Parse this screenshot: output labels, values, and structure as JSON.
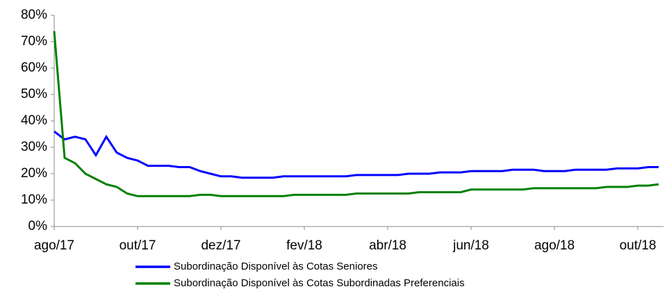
{
  "chart_data": {
    "type": "line",
    "categories": [
      "ago/17",
      null,
      null,
      null,
      null,
      null,
      null,
      null,
      "out/17",
      null,
      null,
      null,
      null,
      null,
      null,
      null,
      "dez/17",
      null,
      null,
      null,
      null,
      null,
      null,
      null,
      "fev/18",
      null,
      null,
      null,
      null,
      null,
      null,
      null,
      "abr/18",
      null,
      null,
      null,
      null,
      null,
      null,
      null,
      "jun/18",
      null,
      null,
      null,
      null,
      null,
      null,
      null,
      "ago/18",
      null,
      null,
      null,
      null,
      null,
      null,
      null,
      "out/18",
      null,
      null
    ],
    "series": [
      {
        "name": "Subordinação Disponível às Cotas Seniores",
        "color": "#0000ff",
        "values": [
          36,
          33,
          34,
          33,
          27,
          34,
          28,
          26,
          25,
          23,
          23,
          23,
          22.5,
          22.5,
          21,
          20,
          19,
          19,
          18.5,
          18.5,
          18.5,
          18.5,
          19,
          19,
          19,
          19,
          19,
          19,
          19,
          19.5,
          19.5,
          19.5,
          19.5,
          19.5,
          20,
          20,
          20,
          20.5,
          20.5,
          20.5,
          21,
          21,
          21,
          21,
          21.5,
          21.5,
          21.5,
          21,
          21,
          21,
          21.5,
          21.5,
          21.5,
          21.5,
          22,
          22,
          22,
          22.5,
          22.5
        ]
      },
      {
        "name": "Subordinação Disponível às Cotas Subordinadas Preferenciais",
        "color": "#008000",
        "values": [
          74,
          26,
          24,
          20,
          18,
          16,
          15,
          12.5,
          11.5,
          11.5,
          11.5,
          11.5,
          11.5,
          11.5,
          12,
          12,
          11.5,
          11.5,
          11.5,
          11.5,
          11.5,
          11.5,
          11.5,
          12,
          12,
          12,
          12,
          12,
          12,
          12.5,
          12.5,
          12.5,
          12.5,
          12.5,
          12.5,
          13,
          13,
          13,
          13,
          13,
          14,
          14,
          14,
          14,
          14,
          14,
          14.5,
          14.5,
          14.5,
          14.5,
          14.5,
          14.5,
          14.5,
          15,
          15,
          15,
          15.5,
          15.5,
          16
        ]
      }
    ],
    "ylim": [
      0,
      80
    ],
    "yticks": [
      {
        "value": 0,
        "label": "0%"
      },
      {
        "value": 10,
        "label": "10%"
      },
      {
        "value": 20,
        "label": "20%"
      },
      {
        "value": 30,
        "label": "30%"
      },
      {
        "value": 40,
        "label": "40%"
      },
      {
        "value": 50,
        "label": "50%"
      },
      {
        "value": 60,
        "label": "60%"
      },
      {
        "value": 70,
        "label": "70%"
      },
      {
        "value": 80,
        "label": "80%"
      }
    ],
    "grid": false
  }
}
